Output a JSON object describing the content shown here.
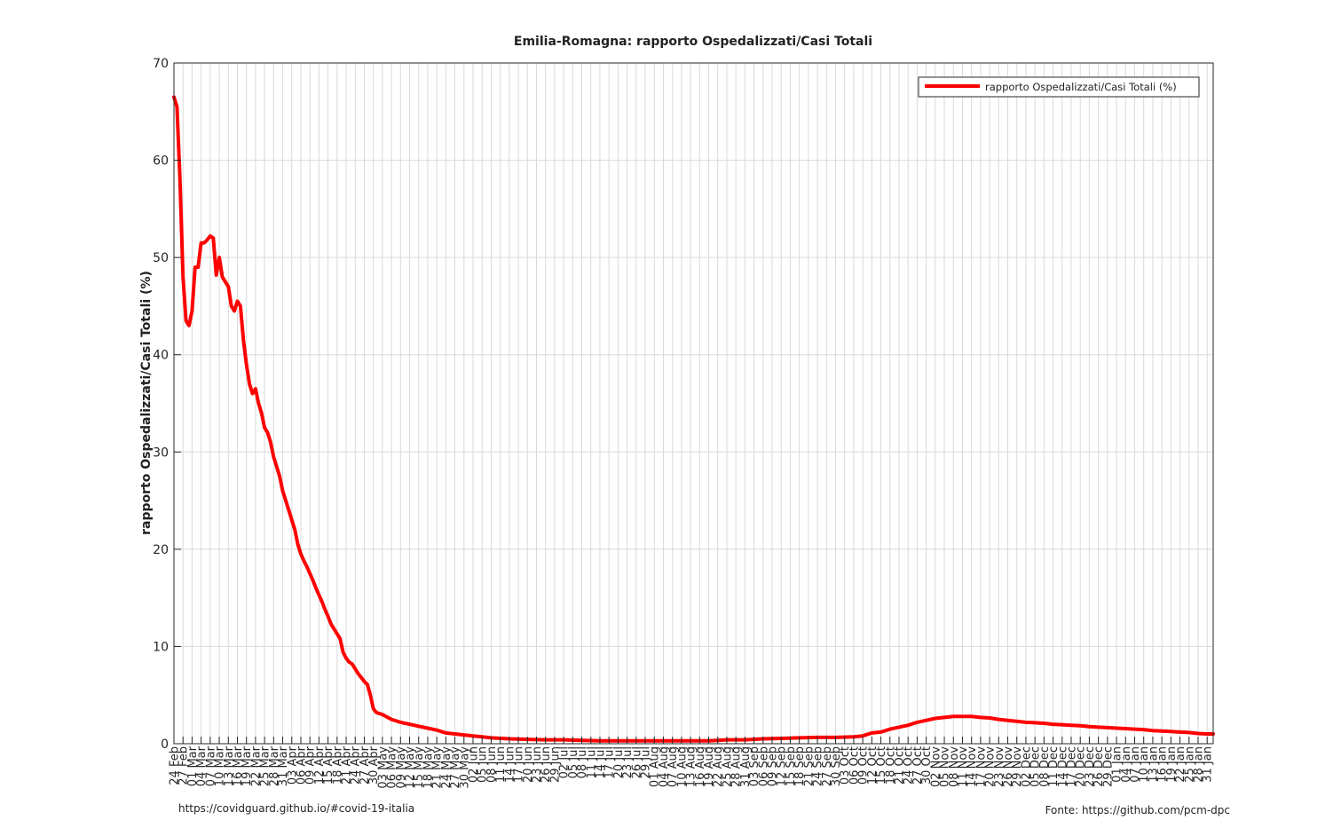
{
  "footer": {
    "left_text": "https://covidguard.github.io/#covid-19-italia",
    "right_text": "Fonte: https://github.com/pcm-dpc"
  },
  "chart_data": {
    "type": "line",
    "title": "Emilia-Romagna: rapporto Ospedalizzati/Casi Totali",
    "xlabel": "",
    "ylabel": "rapporto Ospedalizzati/Casi Totali (%)",
    "ylim": [
      0,
      70
    ],
    "yticks": [
      0,
      10,
      20,
      30,
      40,
      50,
      60,
      70
    ],
    "grid": true,
    "legend_position": "top-right",
    "line_color": "#ff0000",
    "x_tick_labels": [
      "24 Feb",
      "27 Feb",
      "01 Mar",
      "04 Mar",
      "07 Mar",
      "10 Mar",
      "13 Mar",
      "16 Mar",
      "19 Mar",
      "22 Mar",
      "25 Mar",
      "28 Mar",
      "31 Mar",
      "03 Apr",
      "06 Apr",
      "09 Apr",
      "12 Apr",
      "15 Apr",
      "18 Apr",
      "21 Apr",
      "24 Apr",
      "27 Apr",
      "30 Apr",
      "03 May",
      "06 May",
      "09 May",
      "12 May",
      "15 May",
      "18 May",
      "21 May",
      "24 May",
      "27 May",
      "30 May",
      "02 Jun",
      "05 Jun",
      "08 Jun",
      "11 Jun",
      "14 Jun",
      "17 Jun",
      "20 Jun",
      "23 Jun",
      "26 Jun",
      "29 Jun",
      "02 Jul",
      "05 Jul",
      "08 Jul",
      "11 Jul",
      "14 Jul",
      "17 Jul",
      "20 Jul",
      "23 Jul",
      "26 Jul",
      "29 Jul",
      "01 Aug",
      "04 Aug",
      "07 Aug",
      "10 Aug",
      "13 Aug",
      "16 Aug",
      "19 Aug",
      "22 Aug",
      "25 Aug",
      "28 Aug",
      "31 Aug",
      "03 Sep",
      "06 Sep",
      "09 Sep",
      "12 Sep",
      "15 Sep",
      "18 Sep",
      "21 Sep",
      "24 Sep",
      "27 Sep",
      "30 Sep",
      "03 Oct",
      "06 Oct",
      "09 Oct",
      "12 Oct",
      "15 Oct",
      "18 Oct",
      "21 Oct",
      "24 Oct",
      "27 Oct",
      "30 Oct",
      "02 Nov",
      "05 Nov",
      "08 Nov",
      "11 Nov",
      "14 Nov",
      "17 Nov",
      "20 Nov",
      "23 Nov",
      "26 Nov",
      "29 Nov",
      "02 Dec",
      "05 Dec",
      "08 Dec",
      "11 Dec",
      "14 Dec",
      "17 Dec",
      "20 Dec",
      "23 Dec",
      "26 Dec",
      "29 Dec",
      "01 Jan",
      "04 Jan",
      "07 Jan",
      "10 Jan",
      "13 Jan",
      "16 Jan",
      "19 Jan",
      "22 Jan",
      "25 Jan",
      "28 Jan",
      "31 Jan"
    ],
    "series": [
      {
        "name": "rapporto Ospedalizzati/Casi Totali (%)",
        "points": [
          [
            "24 Feb",
            66.5
          ],
          [
            "25 Feb",
            65.5
          ],
          [
            "26 Feb",
            58
          ],
          [
            "27 Feb",
            48
          ],
          [
            "28 Feb",
            43.5
          ],
          [
            "29 Feb",
            43
          ],
          [
            "01 Mar",
            44.5
          ],
          [
            "02 Mar",
            49
          ],
          [
            "03 Mar",
            49
          ],
          [
            "04 Mar",
            51.5
          ],
          [
            "05 Mar",
            51.5
          ],
          [
            "06 Mar",
            51.8
          ],
          [
            "07 Mar",
            52.2
          ],
          [
            "08 Mar",
            52
          ],
          [
            "09 Mar",
            48.2
          ],
          [
            "10 Mar",
            50
          ],
          [
            "11 Mar",
            48
          ],
          [
            "12 Mar",
            47.5
          ],
          [
            "13 Mar",
            47
          ],
          [
            "14 Mar",
            45
          ],
          [
            "15 Mar",
            44.5
          ],
          [
            "16 Mar",
            45.5
          ],
          [
            "17 Mar",
            45
          ],
          [
            "18 Mar",
            41.5
          ],
          [
            "19 Mar",
            39
          ],
          [
            "20 Mar",
            37
          ],
          [
            "21 Mar",
            36
          ],
          [
            "22 Mar",
            36.5
          ],
          [
            "23 Mar",
            35
          ],
          [
            "24 Mar",
            34
          ],
          [
            "25 Mar",
            32.5
          ],
          [
            "26 Mar",
            32
          ],
          [
            "27 Mar",
            31
          ],
          [
            "28 Mar",
            29.5
          ],
          [
            "29 Mar",
            28.5
          ],
          [
            "30 Mar",
            27.5
          ],
          [
            "31 Mar",
            26
          ],
          [
            "01 Apr",
            25
          ],
          [
            "02 Apr",
            24
          ],
          [
            "03 Apr",
            23
          ],
          [
            "04 Apr",
            22
          ],
          [
            "05 Apr",
            20.5
          ],
          [
            "06 Apr",
            19.5
          ],
          [
            "07 Apr",
            18.8
          ],
          [
            "08 Apr",
            18.2
          ],
          [
            "09 Apr",
            17.5
          ],
          [
            "10 Apr",
            16.8
          ],
          [
            "11 Apr",
            16
          ],
          [
            "12 Apr",
            15.3
          ],
          [
            "13 Apr",
            14.6
          ],
          [
            "14 Apr",
            13.8
          ],
          [
            "15 Apr",
            13.1
          ],
          [
            "16 Apr",
            12.3
          ],
          [
            "17 Apr",
            11.8
          ],
          [
            "18 Apr",
            11.3
          ],
          [
            "19 Apr",
            10.8
          ],
          [
            "20 Apr",
            9.4
          ],
          [
            "21 Apr",
            8.8
          ],
          [
            "22 Apr",
            8.4
          ],
          [
            "23 Apr",
            8.2
          ],
          [
            "24 Apr",
            7.7
          ],
          [
            "25 Apr",
            7.2
          ],
          [
            "26 Apr",
            6.8
          ],
          [
            "27 Apr",
            6.4
          ],
          [
            "28 Apr",
            6.1
          ],
          [
            "29 Apr",
            5.0
          ],
          [
            "30 Apr",
            3.6
          ],
          [
            "01 May",
            3.2
          ],
          [
            "03 May",
            3.0
          ],
          [
            "06 May",
            2.5
          ],
          [
            "09 May",
            2.2
          ],
          [
            "12 May",
            2.0
          ],
          [
            "15 May",
            1.8
          ],
          [
            "18 May",
            1.6
          ],
          [
            "21 May",
            1.4
          ],
          [
            "24 May",
            1.1
          ],
          [
            "27 May",
            1.0
          ],
          [
            "30 May",
            0.9
          ],
          [
            "02 Jun",
            0.8
          ],
          [
            "05 Jun",
            0.7
          ],
          [
            "08 Jun",
            0.6
          ],
          [
            "14 Jun",
            0.5
          ],
          [
            "20 Jun",
            0.45
          ],
          [
            "26 Jun",
            0.4
          ],
          [
            "02 Jul",
            0.4
          ],
          [
            "08 Jul",
            0.35
          ],
          [
            "14 Jul",
            0.3
          ],
          [
            "20 Jul",
            0.3
          ],
          [
            "26 Jul",
            0.3
          ],
          [
            "01 Aug",
            0.3
          ],
          [
            "07 Aug",
            0.3
          ],
          [
            "13 Aug",
            0.3
          ],
          [
            "19 Aug",
            0.3
          ],
          [
            "22 Aug",
            0.35
          ],
          [
            "25 Aug",
            0.4
          ],
          [
            "31 Aug",
            0.4
          ],
          [
            "06 Sep",
            0.5
          ],
          [
            "12 Sep",
            0.55
          ],
          [
            "18 Sep",
            0.6
          ],
          [
            "24 Sep",
            0.65
          ],
          [
            "30 Sep",
            0.65
          ],
          [
            "06 Oct",
            0.7
          ],
          [
            "09 Oct",
            0.8
          ],
          [
            "12 Oct",
            1.1
          ],
          [
            "15 Oct",
            1.2
          ],
          [
            "18 Oct",
            1.5
          ],
          [
            "21 Oct",
            1.7
          ],
          [
            "24 Oct",
            1.9
          ],
          [
            "27 Oct",
            2.2
          ],
          [
            "30 Oct",
            2.4
          ],
          [
            "02 Nov",
            2.6
          ],
          [
            "05 Nov",
            2.7
          ],
          [
            "08 Nov",
            2.8
          ],
          [
            "11 Nov",
            2.8
          ],
          [
            "14 Nov",
            2.8
          ],
          [
            "17 Nov",
            2.7
          ],
          [
            "20 Nov",
            2.65
          ],
          [
            "23 Nov",
            2.5
          ],
          [
            "26 Nov",
            2.4
          ],
          [
            "29 Nov",
            2.3
          ],
          [
            "02 Dec",
            2.2
          ],
          [
            "05 Dec",
            2.15
          ],
          [
            "08 Dec",
            2.1
          ],
          [
            "11 Dec",
            2.0
          ],
          [
            "14 Dec",
            1.95
          ],
          [
            "17 Dec",
            1.9
          ],
          [
            "20 Dec",
            1.85
          ],
          [
            "23 Dec",
            1.75
          ],
          [
            "26 Dec",
            1.7
          ],
          [
            "29 Dec",
            1.65
          ],
          [
            "01 Jan",
            1.6
          ],
          [
            "04 Jan",
            1.55
          ],
          [
            "07 Jan",
            1.5
          ],
          [
            "10 Jan",
            1.45
          ],
          [
            "13 Jan",
            1.35
          ],
          [
            "16 Jan",
            1.3
          ],
          [
            "19 Jan",
            1.25
          ],
          [
            "22 Jan",
            1.2
          ],
          [
            "25 Jan",
            1.15
          ],
          [
            "28 Jan",
            1.05
          ],
          [
            "31 Jan",
            1.0
          ],
          [
            "02 Feb",
            1.0
          ]
        ]
      }
    ]
  }
}
